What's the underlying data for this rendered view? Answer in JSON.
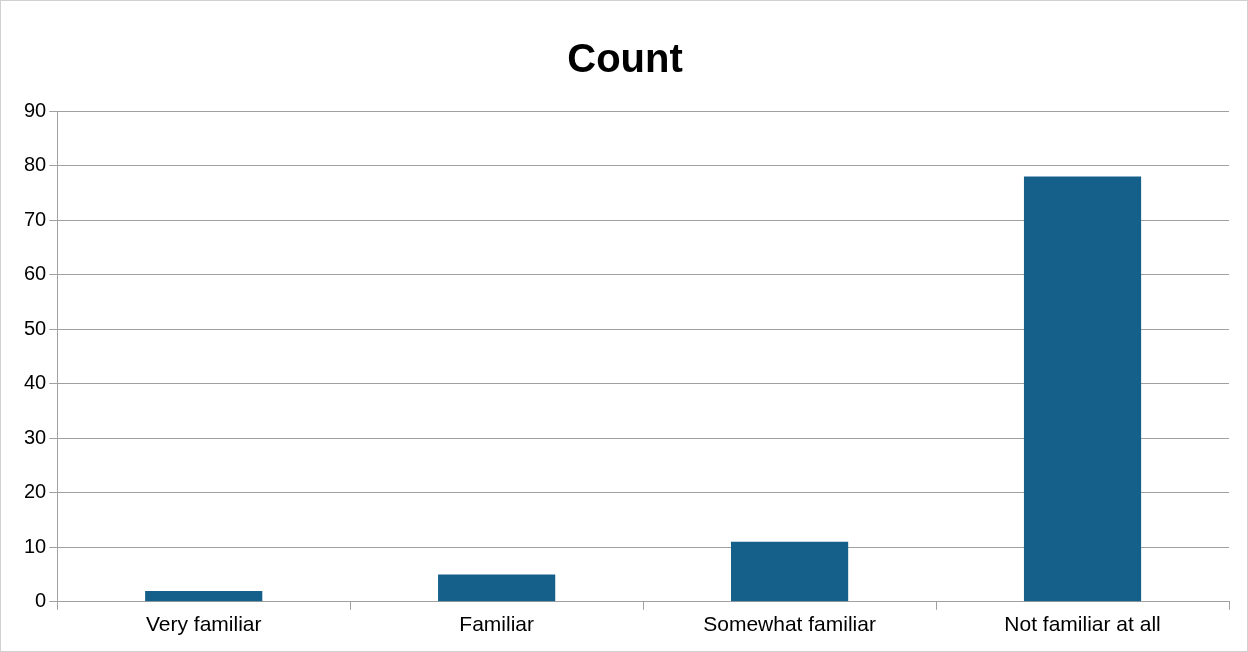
{
  "chart_data": {
    "type": "bar",
    "title": "Count",
    "categories": [
      "Very familiar",
      "Familiar",
      "Somewhat familiar",
      "Not familiar at all"
    ],
    "values": [
      2,
      5,
      11,
      78
    ],
    "color": "#15608a",
    "ylim": [
      0,
      90
    ],
    "yticks": [
      0,
      10,
      20,
      30,
      40,
      50,
      60,
      70,
      80,
      90
    ],
    "grid": "y",
    "legend": false
  }
}
